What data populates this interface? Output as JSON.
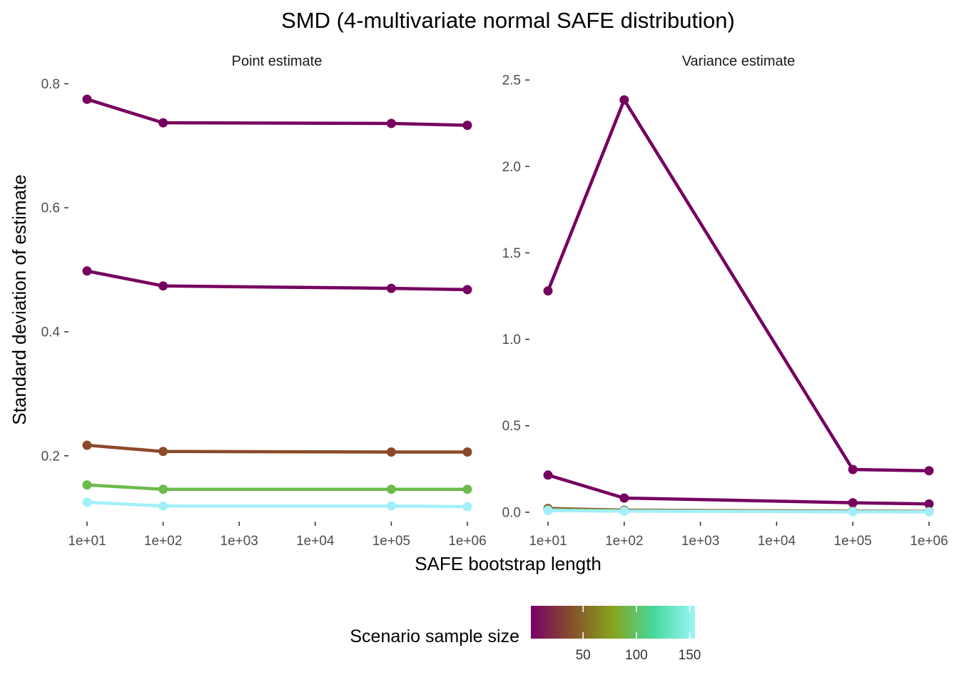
{
  "chart_data": {
    "type": "line",
    "title": "SMD (4-multivariate normal SAFE distribution)",
    "xlabel": "SAFE bootstrap length",
    "ylabel": "Standard deviation of estimate",
    "x_scale": "log10",
    "x_ticks": [
      "1e+01",
      "1e+02",
      "1e+03",
      "1e+04",
      "1e+05",
      "1e+06"
    ],
    "x_values": [
      10,
      100,
      100000,
      1000000
    ],
    "grid": false,
    "legend": {
      "title": "Scenario sample size",
      "position": "bottom",
      "type": "colorbar",
      "range": [
        1,
        155
      ],
      "ticks": [
        "50",
        "100",
        "150"
      ],
      "colors": [
        "#7a0068",
        "#85512a",
        "#87a41e",
        "#45d99e",
        "#9bf5f5"
      ]
    },
    "panels": [
      {
        "facet": "Point estimate",
        "ylim": [
          0.095,
          0.82
        ],
        "y_ticks": [
          "0.2",
          "0.4",
          "0.6",
          "0.8"
        ],
        "series": [
          {
            "sample_size": 5,
            "color": "#76005f",
            "values": [
              0.775,
              0.737,
              0.736,
              0.733
            ]
          },
          {
            "sample_size": 10,
            "color": "#76005f",
            "values": [
              0.498,
              0.474,
              0.47,
              0.468
            ]
          },
          {
            "sample_size": 50,
            "color": "#8b4a2b",
            "values": [
              0.217,
              0.207,
              0.206,
              0.206
            ]
          },
          {
            "sample_size": 100,
            "color": "#6dbb4d",
            "values": [
              0.153,
              0.146,
              0.146,
              0.146
            ]
          },
          {
            "sample_size": 150,
            "color": "#a3eff9",
            "values": [
              0.125,
              0.119,
              0.119,
              0.118
            ]
          }
        ]
      },
      {
        "facet": "Variance estimate",
        "ylim": [
          -0.05,
          2.55
        ],
        "y_ticks": [
          "0.0",
          "0.5",
          "1.0",
          "1.5",
          "2.0",
          "2.5"
        ],
        "series": [
          {
            "sample_size": 5,
            "color": "#76005f",
            "values": [
              1.28,
              2.385,
              0.247,
              0.24
            ]
          },
          {
            "sample_size": 10,
            "color": "#76005f",
            "values": [
              0.215,
              0.082,
              0.055,
              0.048
            ]
          },
          {
            "sample_size": 50,
            "color": "#8b4a2b",
            "values": [
              0.022,
              0.012,
              0.006,
              0.005
            ]
          },
          {
            "sample_size": 100,
            "color": "#6dbb4d",
            "values": [
              0.015,
              0.009,
              0.004,
              0.003
            ]
          },
          {
            "sample_size": 150,
            "color": "#a3eff9",
            "values": [
              0.01,
              0.006,
              0.003,
              0.002
            ]
          }
        ]
      }
    ]
  }
}
